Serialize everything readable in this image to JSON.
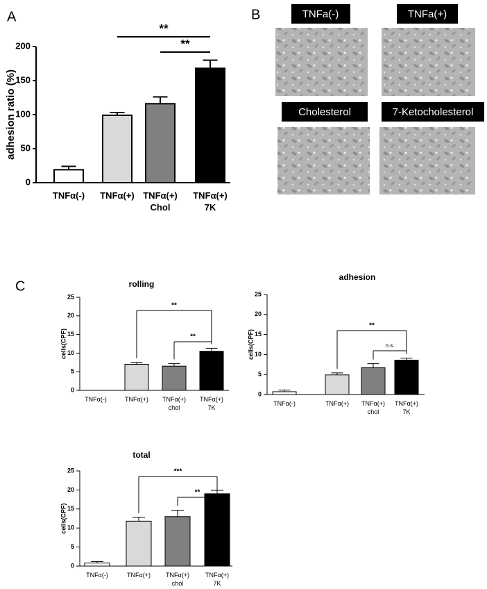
{
  "panels": [
    "A",
    "B",
    "C"
  ],
  "micrographs": [
    "TNFa(-)",
    "TNFa(+)",
    "Cholesterol",
    "7-Ketocholesterol"
  ],
  "chart_data": [
    {
      "type": "bar",
      "ylabel": "adhesion ratio (%)",
      "categories": [
        "TNFα(-)",
        "TNFα(+)",
        "TNFα(+) Chol",
        "TNFα(+) 7K"
      ],
      "values": [
        19,
        99,
        116,
        168
      ],
      "errors": [
        5,
        4,
        10,
        12
      ],
      "colors": [
        "#ffffff",
        "#d9d9d9",
        "#808080",
        "#000000"
      ],
      "ylim": [
        0,
        200
      ],
      "yticks": [
        0,
        50,
        100,
        150,
        200
      ],
      "annotations": [
        {
          "from": 1,
          "to": 3,
          "label": "**"
        },
        {
          "from": 2,
          "to": 3,
          "label": "**"
        }
      ]
    },
    {
      "type": "bar",
      "title": "rolling",
      "ylabel": "cells(CPF)",
      "categories": [
        "TNFα(-)",
        "TNFα(+)",
        "TNFα(+) chol",
        "TNFα(+) 7K"
      ],
      "values": [
        0,
        7,
        6.5,
        10.5
      ],
      "errors": [
        0,
        0.5,
        0.7,
        0.8
      ],
      "colors": [
        "#ffffff",
        "#d9d9d9",
        "#808080",
        "#000000"
      ],
      "ylim": [
        0,
        25
      ],
      "yticks": [
        0,
        5,
        10,
        15,
        20,
        25
      ],
      "annotations": [
        {
          "from": 1,
          "to": 3,
          "label": "**"
        },
        {
          "from": 2,
          "to": 3,
          "label": "**"
        }
      ]
    },
    {
      "type": "bar",
      "title": "adhesion",
      "ylabel": "cells(CPF)",
      "categories": [
        "TNFα(-)",
        "TNFα(+)",
        "TNFα(+) chol",
        "TNFα(+) 7K"
      ],
      "values": [
        0.7,
        4.9,
        6.7,
        8.6
      ],
      "errors": [
        0.4,
        0.5,
        1,
        0.5
      ],
      "colors": [
        "#ffffff",
        "#d9d9d9",
        "#808080",
        "#000000"
      ],
      "ylim": [
        0,
        25
      ],
      "yticks": [
        0,
        5,
        10,
        15,
        20,
        25
      ],
      "annotations": [
        {
          "from": 1,
          "to": 3,
          "label": "**"
        },
        {
          "from": 2,
          "to": 3,
          "label": "n.s."
        }
      ]
    },
    {
      "type": "bar",
      "title": "total",
      "ylabel": "cells(CPF)",
      "categories": [
        "TNFα(-)",
        "TNFα(+)",
        "TNFα(+) chol",
        "TNFα(+) 7K"
      ],
      "values": [
        0.8,
        11.8,
        13,
        19
      ],
      "errors": [
        0.4,
        1,
        1.7,
        0.9
      ],
      "colors": [
        "#ffffff",
        "#d9d9d9",
        "#808080",
        "#000000"
      ],
      "ylim": [
        0,
        25
      ],
      "yticks": [
        0,
        5,
        10,
        15,
        20,
        25
      ],
      "annotations": [
        {
          "from": 1,
          "to": 3,
          "label": "***"
        },
        {
          "from": 2,
          "to": 3,
          "label": "**"
        }
      ]
    }
  ]
}
